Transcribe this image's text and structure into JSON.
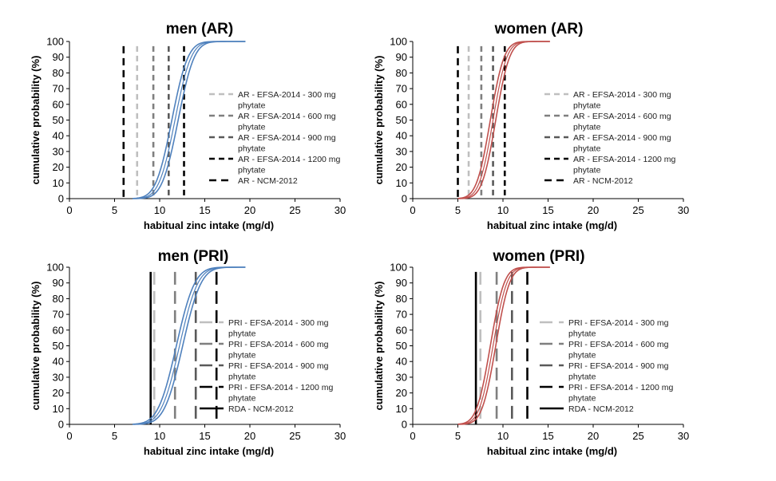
{
  "chart_data": [
    {
      "type": "line",
      "title": "men (AR)",
      "xlabel": "habitual zinc intake (mg/d)",
      "ylabel": "cumulative probability (%)",
      "xlim": [
        0,
        30
      ],
      "ylim": [
        0,
        100
      ],
      "xticks": [
        0,
        5,
        10,
        15,
        20,
        25,
        30
      ],
      "yticks": [
        0,
        10,
        20,
        30,
        40,
        50,
        60,
        70,
        80,
        90,
        100
      ],
      "grid": false,
      "legend_position": "right",
      "curve": {
        "color": "#4f81bd",
        "x_start": 7.0,
        "x_end": 19.5,
        "median": 11.7,
        "spread": 1.4,
        "band": 0.35
      },
      "reference_lines": [
        {
          "label_lines": [
            "AR - EFSA-2014 - 300 mg",
            "phytate"
          ],
          "x": 7.5,
          "color": "#bfbfbf",
          "style": "dash-short"
        },
        {
          "label_lines": [
            "AR - EFSA-2014 - 600 mg",
            "phytate"
          ],
          "x": 9.3,
          "color": "#7f7f7f",
          "style": "dash-short"
        },
        {
          "label_lines": [
            "AR - EFSA-2014 - 900 mg",
            "phytate"
          ],
          "x": 11.0,
          "color": "#595959",
          "style": "dash-short"
        },
        {
          "label_lines": [
            "AR - EFSA-2014 - 1200 mg",
            "phytate"
          ],
          "x": 12.7,
          "color": "#000000",
          "style": "dash-short"
        },
        {
          "label_lines": [
            "AR - NCM-2012"
          ],
          "x": 6.0,
          "color": "#000000",
          "style": "dash-medium"
        }
      ]
    },
    {
      "type": "line",
      "title": "women (AR)",
      "xlabel": "habitual zinc intake (mg/d)",
      "ylabel": "cumulative probability (%)",
      "xlim": [
        0,
        30
      ],
      "ylim": [
        0,
        100
      ],
      "xticks": [
        0,
        5,
        10,
        15,
        20,
        25,
        30
      ],
      "yticks": [
        0,
        10,
        20,
        30,
        40,
        50,
        60,
        70,
        80,
        90,
        100
      ],
      "grid": false,
      "legend_position": "right",
      "curve": {
        "color": "#c0504d",
        "x_start": 5.0,
        "x_end": 15.2,
        "median": 8.9,
        "spread": 1.2,
        "band": 0.3
      },
      "reference_lines": [
        {
          "label_lines": [
            "AR - EFSA-2014 - 300 mg",
            "phytate"
          ],
          "x": 6.2,
          "color": "#bfbfbf",
          "style": "dash-short"
        },
        {
          "label_lines": [
            "AR - EFSA-2014 - 600 mg",
            "phytate"
          ],
          "x": 7.6,
          "color": "#7f7f7f",
          "style": "dash-short"
        },
        {
          "label_lines": [
            "AR - EFSA-2014 - 900 mg",
            "phytate"
          ],
          "x": 8.9,
          "color": "#595959",
          "style": "dash-short"
        },
        {
          "label_lines": [
            "AR - EFSA-2014 - 1200 mg",
            "phytate"
          ],
          "x": 10.2,
          "color": "#000000",
          "style": "dash-short"
        },
        {
          "label_lines": [
            "AR - NCM-2012"
          ],
          "x": 5.0,
          "color": "#000000",
          "style": "dash-medium"
        }
      ]
    },
    {
      "type": "line",
      "title": "men (PRI)",
      "xlabel": "habitual zinc intake (mg/d)",
      "ylabel": "cumulative probability (%)",
      "xlim": [
        0,
        30
      ],
      "ylim": [
        0,
        100
      ],
      "xticks": [
        0,
        5,
        10,
        15,
        20,
        25,
        30
      ],
      "yticks": [
        0,
        10,
        20,
        30,
        40,
        50,
        60,
        70,
        80,
        90,
        100
      ],
      "grid": false,
      "legend_position": "right",
      "curve": {
        "color": "#4f81bd",
        "x_start": 7.0,
        "x_end": 19.5,
        "median": 12.2,
        "spread": 1.6,
        "band": 0.35
      },
      "reference_lines": [
        {
          "label_lines": [
            "PRI - EFSA-2014 - 300 mg",
            "phytate"
          ],
          "x": 9.4,
          "color": "#bfbfbf",
          "style": "dash-long"
        },
        {
          "label_lines": [
            "PRI - EFSA-2014 - 600 mg",
            "phytate"
          ],
          "x": 11.7,
          "color": "#7f7f7f",
          "style": "dash-long"
        },
        {
          "label_lines": [
            "PRI - EFSA-2014 - 900 mg",
            "phytate"
          ],
          "x": 14.0,
          "color": "#595959",
          "style": "dash-long"
        },
        {
          "label_lines": [
            "PRI - EFSA-2014 - 1200 mg",
            "phytate"
          ],
          "x": 16.3,
          "color": "#000000",
          "style": "dash-long"
        },
        {
          "label_lines": [
            "RDA - NCM-2012"
          ],
          "x": 9.0,
          "color": "#000000",
          "style": "solid"
        }
      ]
    },
    {
      "type": "line",
      "title": "women (PRI)",
      "xlabel": "habitual zinc intake (mg/d)",
      "ylabel": "cumulative probability (%)",
      "xlim": [
        0,
        30
      ],
      "ylim": [
        0,
        100
      ],
      "xticks": [
        0,
        5,
        10,
        15,
        20,
        25,
        30
      ],
      "yticks": [
        0,
        10,
        20,
        30,
        40,
        50,
        60,
        70,
        80,
        90,
        100
      ],
      "grid": false,
      "legend_position": "right",
      "curve": {
        "color": "#c0504d",
        "x_start": 5.0,
        "x_end": 15.2,
        "median": 8.9,
        "spread": 1.2,
        "band": 0.3
      },
      "reference_lines": [
        {
          "label_lines": [
            "PRI - EFSA-2014 - 300 mg",
            "phytate"
          ],
          "x": 7.5,
          "color": "#bfbfbf",
          "style": "dash-long"
        },
        {
          "label_lines": [
            "PRI - EFSA-2014 - 600 mg",
            "phytate"
          ],
          "x": 9.3,
          "color": "#7f7f7f",
          "style": "dash-long"
        },
        {
          "label_lines": [
            "PRI - EFSA-2014 - 900 mg",
            "phytate"
          ],
          "x": 11.0,
          "color": "#595959",
          "style": "dash-long"
        },
        {
          "label_lines": [
            "PRI - EFSA-2014 - 1200 mg",
            "phytate"
          ],
          "x": 12.7,
          "color": "#000000",
          "style": "dash-long"
        },
        {
          "label_lines": [
            "RDA - NCM-2012"
          ],
          "x": 7.0,
          "color": "#000000",
          "style": "solid"
        }
      ]
    }
  ]
}
